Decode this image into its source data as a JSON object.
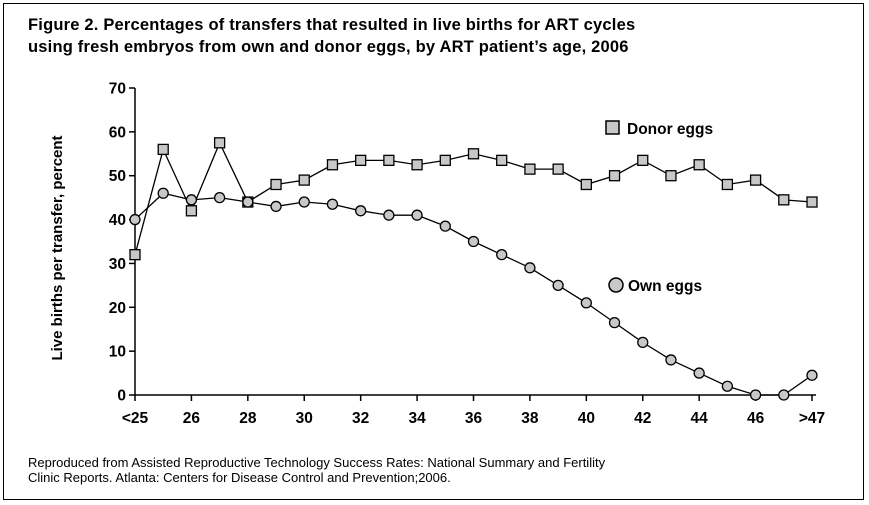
{
  "figure": {
    "title_line1": "Figure 2. Percentages of transfers that resulted in live births for ART cycles",
    "title_line2": "using fresh embryos from own and donor eggs, by ART patient’s age, 2006",
    "source_line1": "Reproduced from Assisted Reproductive Technology Success Rates: National Summary and Fertility",
    "source_line2": "Clinic Reports. Atlanta: Centers for Disease Control and Prevention;2006."
  },
  "chart_data": {
    "type": "line",
    "title": "Figure 2. Percentages of transfers that resulted in live births for ART cycles using fresh embryos from own and donor eggs, by ART patient’s age, 2006",
    "xlabel": "",
    "ylabel": "Live births per transfer, percent",
    "x": [
      24,
      25,
      26,
      27,
      28,
      29,
      30,
      31,
      32,
      33,
      34,
      35,
      36,
      37,
      38,
      39,
      40,
      41,
      42,
      43,
      44,
      45,
      46,
      47,
      48
    ],
    "xlim": [
      24,
      48
    ],
    "ylim": [
      0,
      70
    ],
    "xticks": [
      {
        "x": 24,
        "label": "<25"
      },
      {
        "x": 26,
        "label": "26"
      },
      {
        "x": 28,
        "label": "28"
      },
      {
        "x": 30,
        "label": "30"
      },
      {
        "x": 32,
        "label": "32"
      },
      {
        "x": 34,
        "label": "34"
      },
      {
        "x": 36,
        "label": "36"
      },
      {
        "x": 38,
        "label": "38"
      },
      {
        "x": 40,
        "label": "40"
      },
      {
        "x": 42,
        "label": "42"
      },
      {
        "x": 44,
        "label": "44"
      },
      {
        "x": 46,
        "label": "46"
      },
      {
        "x": 48,
        "label": ">47"
      }
    ],
    "yticks": [
      "0",
      "10",
      "20",
      "30",
      "40",
      "50",
      "60",
      "70"
    ],
    "grid": false,
    "series": [
      {
        "name": "Donor eggs",
        "marker": "square",
        "values": [
          32,
          56,
          42,
          57.5,
          44,
          48,
          49,
          52.5,
          53.5,
          53.5,
          52.5,
          53.5,
          55,
          53.5,
          51.5,
          51.5,
          48,
          50,
          53.5,
          50,
          52.5,
          48,
          49,
          44.5,
          44
        ]
      },
      {
        "name": "Own eggs",
        "marker": "circle",
        "values": [
          40,
          46,
          44.5,
          45,
          44,
          43,
          44,
          43.5,
          42,
          41,
          41,
          38.5,
          35,
          32,
          29,
          25,
          21,
          16.5,
          12,
          8,
          5,
          2,
          0,
          0,
          4.5
        ]
      }
    ],
    "legend_placement": "inline, beside each series"
  }
}
